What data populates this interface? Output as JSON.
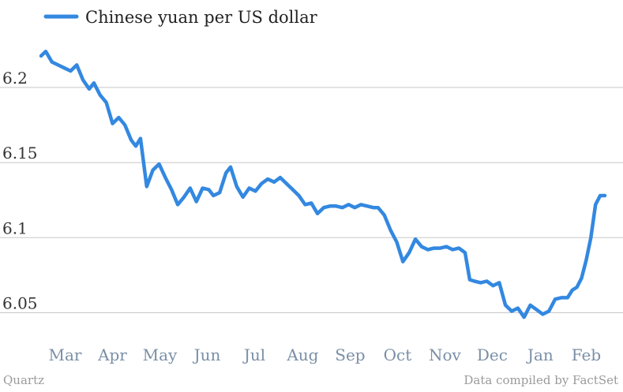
{
  "chart_data": {
    "type": "line",
    "title": "",
    "xlabel": "",
    "ylabel": "",
    "ylim": [
      6.035,
      6.232
    ],
    "grid": true,
    "legend": "top-left",
    "series_color": "#3388e0",
    "x_ticks": [
      "Mar",
      "Apr",
      "May",
      "Jun",
      "Jul",
      "Aug",
      "Sep",
      "Oct",
      "Nov",
      "Dec",
      "Jan",
      "Feb"
    ],
    "y_ticks": [
      6.05,
      6.1,
      6.15,
      6.2
    ],
    "y_tick_labels": [
      "6.05",
      "6.1",
      "6.15",
      "6.2"
    ],
    "series": [
      {
        "name": "Chinese yuan per US dollar",
        "x": [
          "Mar 1",
          "Mar 4",
          "Mar 8",
          "Mar 12",
          "Mar 16",
          "Mar 20",
          "Mar 24",
          "Mar 28",
          "Apr 1",
          "Apr 4",
          "Apr 8",
          "Apr 12",
          "Apr 16",
          "Apr 20",
          "Apr 24",
          "Apr 28",
          "May 1",
          "May 4",
          "May 8",
          "May 12",
          "May 16",
          "May 20",
          "May 24",
          "May 28",
          "Jun 1",
          "Jun 5",
          "Jun 9",
          "Jun 13",
          "Jun 17",
          "Jun 20",
          "Jun 24",
          "Jun 28",
          "Jul 1",
          "Jul 5",
          "Jul 9",
          "Jul 13",
          "Jul 17",
          "Jul 21",
          "Jul 25",
          "Jul 29",
          "Aug 2",
          "Aug 6",
          "Aug 10",
          "Aug 14",
          "Aug 18",
          "Aug 22",
          "Aug 26",
          "Aug 30",
          "Sep 3",
          "Sep 7",
          "Sep 11",
          "Sep 15",
          "Sep 19",
          "Sep 23",
          "Sep 27",
          "Oct 1",
          "Oct 4",
          "Oct 8",
          "Oct 12",
          "Oct 16",
          "Oct 20",
          "Oct 24",
          "Oct 28",
          "Nov 1",
          "Nov 5",
          "Nov 9",
          "Nov 13",
          "Nov 17",
          "Nov 21",
          "Nov 25",
          "Nov 29",
          "Dec 2",
          "Dec 5",
          "Dec 9",
          "Dec 13",
          "Dec 17",
          "Dec 21",
          "Dec 25",
          "Dec 29",
          "Jan 2",
          "Jan 6",
          "Jan 10",
          "Jan 14",
          "Jan 18",
          "Jan 22",
          "Jan 26",
          "Jan 30",
          "Feb 3",
          "Feb 6",
          "Feb 9",
          "Feb 12",
          "Feb 15",
          "Feb 18",
          "Feb 21",
          "Feb 24",
          "Feb 27"
        ],
        "values": [
          6.221,
          6.224,
          6.217,
          6.215,
          6.213,
          6.211,
          6.215,
          6.205,
          6.199,
          6.203,
          6.195,
          6.19,
          6.176,
          6.18,
          6.175,
          6.165,
          6.161,
          6.166,
          6.134,
          6.145,
          6.149,
          6.14,
          6.132,
          6.122,
          6.127,
          6.133,
          6.124,
          6.133,
          6.132,
          6.128,
          6.13,
          6.143,
          6.147,
          6.134,
          6.127,
          6.133,
          6.131,
          6.136,
          6.139,
          6.137,
          6.14,
          6.136,
          6.132,
          6.128,
          6.122,
          6.123,
          6.116,
          6.12,
          6.121,
          6.121,
          6.12,
          6.122,
          6.12,
          6.122,
          6.121,
          6.12,
          6.12,
          6.115,
          6.105,
          6.097,
          6.084,
          6.09,
          6.099,
          6.094,
          6.092,
          6.093,
          6.093,
          6.094,
          6.092,
          6.093,
          6.09,
          6.072,
          6.071,
          6.07,
          6.071,
          6.068,
          6.07,
          6.055,
          6.051,
          6.053,
          6.047,
          6.055,
          6.052,
          6.049,
          6.051,
          6.059,
          6.06,
          6.06,
          6.065,
          6.067,
          6.073,
          6.085,
          6.1,
          6.122,
          6.128,
          6.128
        ]
      }
    ]
  },
  "footer": {
    "source_left": "Quartz",
    "source_right": "Data compiled by FactSet"
  }
}
